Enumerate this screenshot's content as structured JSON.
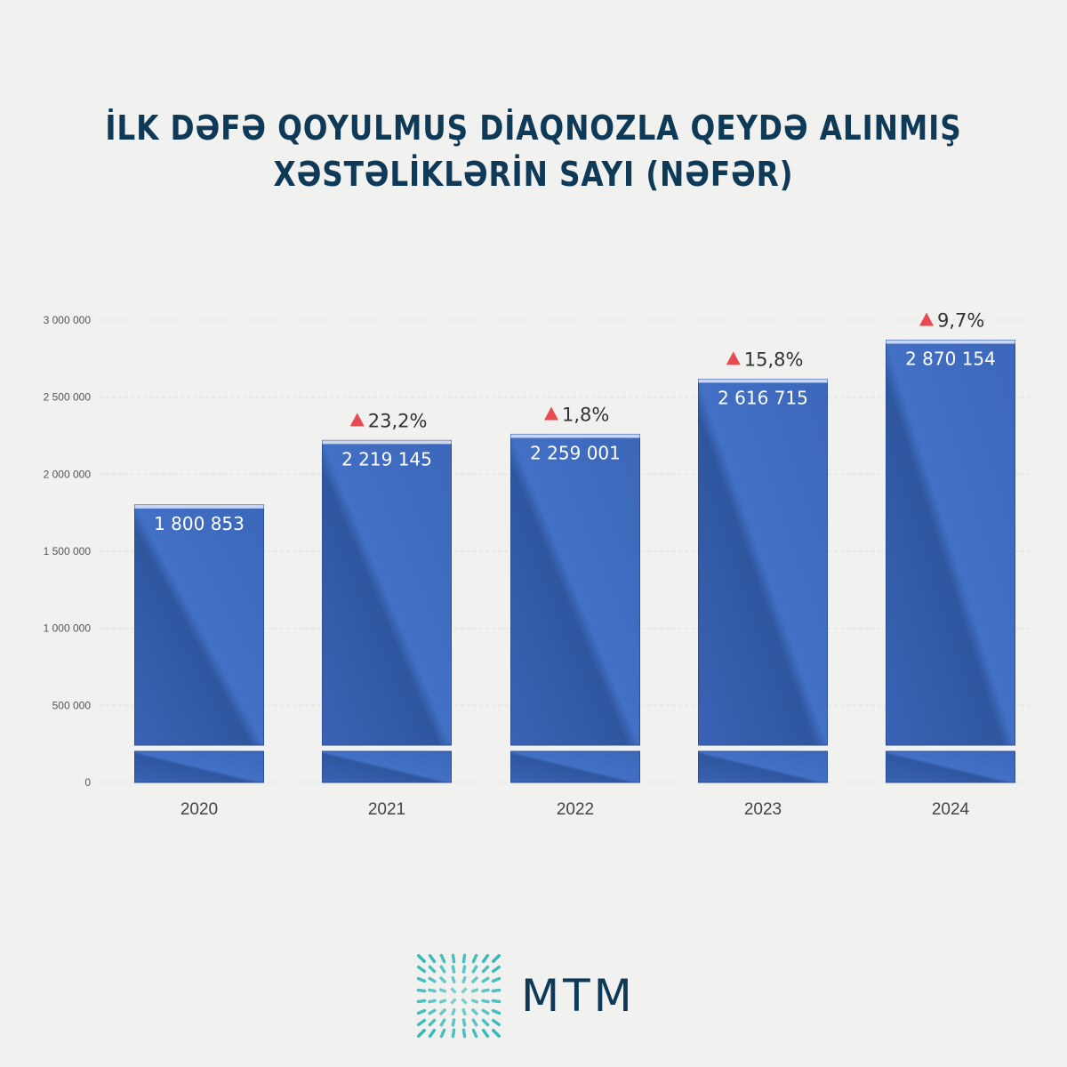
{
  "title": {
    "line1": "İLK DƏFƏ QOYULMUŞ DİAQNOZLA QEYDƏ ALINMIŞ",
    "line2": "XƏSTƏLİKLƏRİN SAYI (NƏFƏR)"
  },
  "logo": {
    "text": "MTM"
  },
  "colors": {
    "bar": "#3d68bd",
    "bar_dark": "#2a4f9a",
    "up": "#e94a4f",
    "title": "#0e3a58"
  },
  "chart_data": {
    "type": "bar",
    "title": "İLK DƏFƏ QOYULMUŞ DİAQNOZLA QEYDƏ ALINMIŞ XƏSTƏLİKLƏRİN SAYI (NƏFƏR)",
    "categories": [
      "2020",
      "2021",
      "2022",
      "2023",
      "2024"
    ],
    "values": [
      1800853,
      2219145,
      2259001,
      2616715,
      2870154
    ],
    "value_labels": [
      "1 800 853",
      "2 219 145",
      "2 259 001",
      "2 616 715",
      "2 870 154"
    ],
    "change_labels": [
      "",
      "23,2%",
      "1,8%",
      "15,8%",
      "9,7%"
    ],
    "ylim": [
      0,
      3000000
    ],
    "yticks": [
      0,
      500000,
      1000000,
      1500000,
      2000000,
      2500000,
      3000000
    ],
    "ytick_labels": [
      "0",
      "500 000",
      "1 000 000",
      "1 500 000",
      "2 000 000",
      "2 500 000",
      "3 000 000"
    ],
    "grid": true,
    "xlabel": "",
    "ylabel": ""
  }
}
